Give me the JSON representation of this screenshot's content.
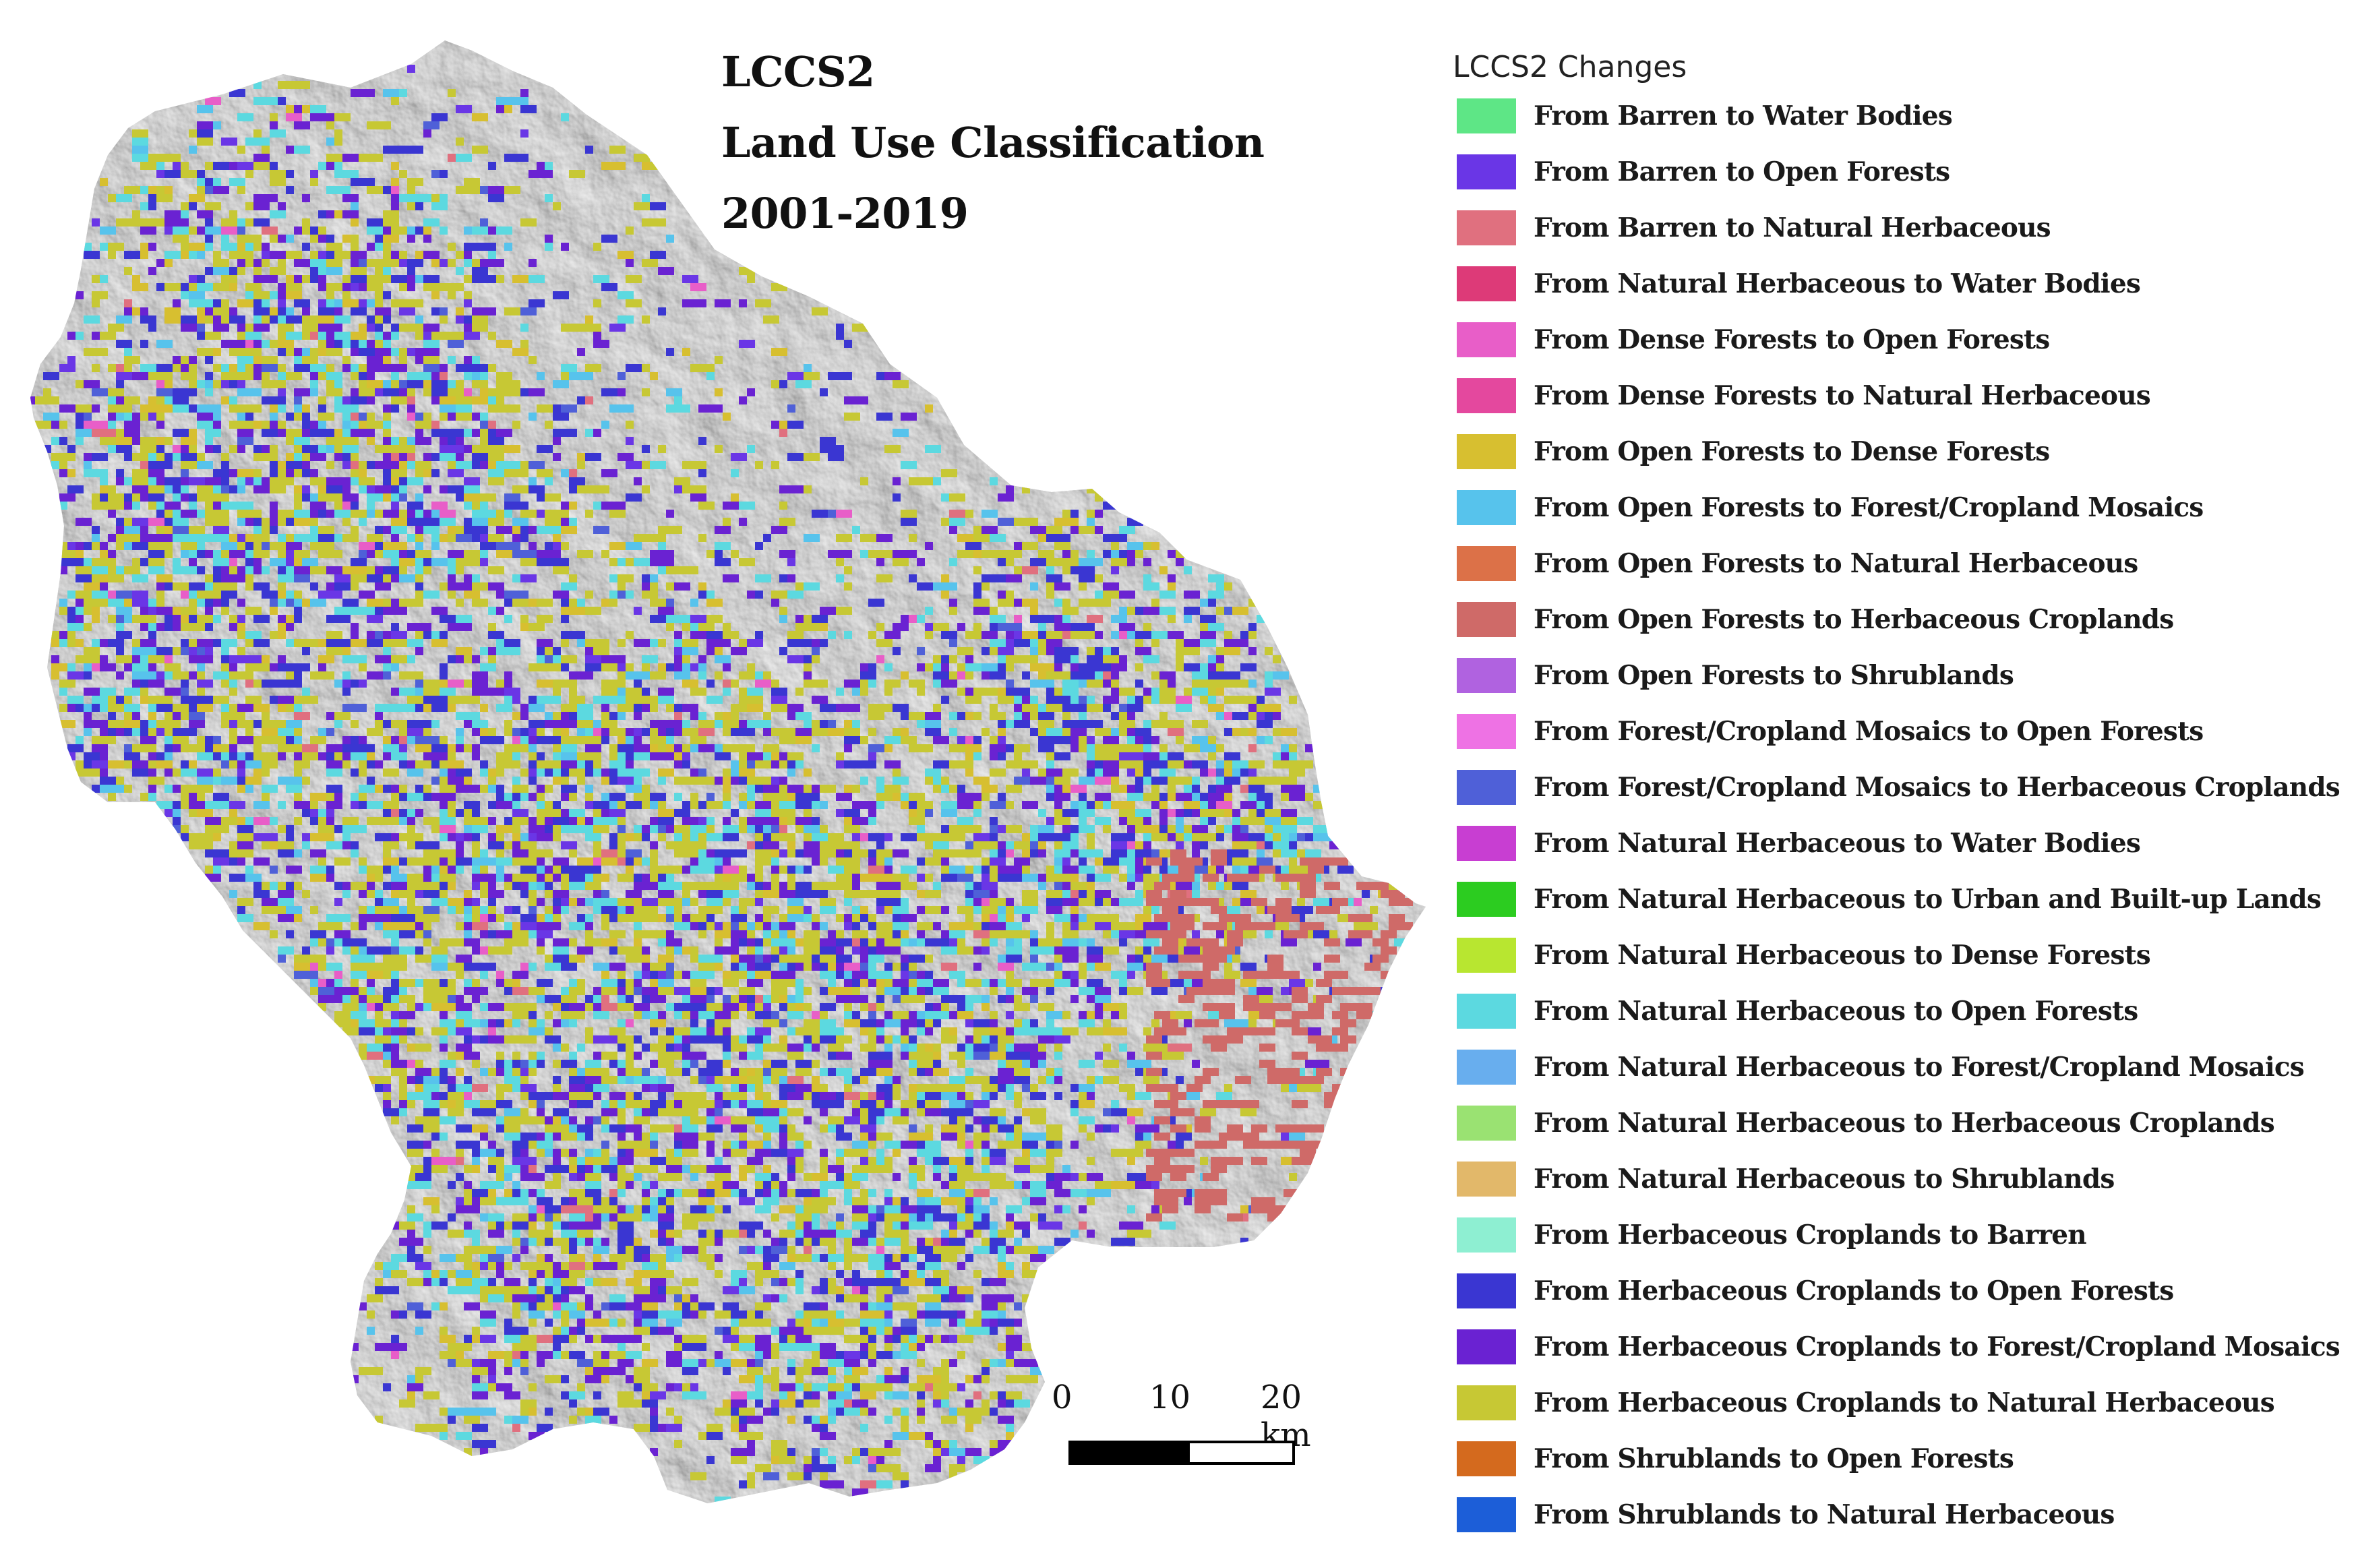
{
  "map": {
    "title_lines": [
      "LCCS2",
      "Land Use Classification",
      "2001-2019"
    ],
    "scale": {
      "labels": [
        "0",
        "10",
        "20 km"
      ]
    }
  },
  "legend": {
    "title": "LCCS2 Changes",
    "items": [
      {
        "label": "From Barren to Water Bodies",
        "color": "#5ee686"
      },
      {
        "label": "From Barren to Open Forests",
        "color": "#6a36e6"
      },
      {
        "label": "From Barren to Natural Herbaceous",
        "color": "#e0707f"
      },
      {
        "label": "From Natural Herbaceous to Water Bodies",
        "color": "#dd3a78"
      },
      {
        "label": "From Dense Forests to Open Forests",
        "color": "#e85ec8"
      },
      {
        "label": "From Dense Forests to Natural Herbaceous",
        "color": "#e4489e"
      },
      {
        "label": "From Open Forests to Dense Forests",
        "color": "#d7bf30"
      },
      {
        "label": "From Open Forests to Forest/Cropland Mosaics",
        "color": "#57c3ec"
      },
      {
        "label": "From Open Forests to Natural Herbaceous",
        "color": "#dc7148"
      },
      {
        "label": "From Open Forests to Herbaceous Croplands",
        "color": "#cf6a68"
      },
      {
        "label": "From Open Forests to Shrublands",
        "color": "#b062e0"
      },
      {
        "label": "From Forest/Cropland Mosaics to Open Forests",
        "color": "#ee72e4"
      },
      {
        "label": "From Forest/Cropland Mosaics to Herbaceous Croplands",
        "color": "#4f60d8"
      },
      {
        "label": "From Natural Herbaceous to Water Bodies",
        "color": "#c83ed2"
      },
      {
        "label": "From Natural Herbaceous to Urban and Built-up Lands",
        "color": "#2ccc20"
      },
      {
        "label": "From Natural Herbaceous to Dense Forests",
        "color": "#b8e630"
      },
      {
        "label": "From Natural Herbaceous to Open Forests",
        "color": "#5cd9e0"
      },
      {
        "label": "From Natural Herbaceous to Forest/Cropland Mosaics",
        "color": "#68aeee"
      },
      {
        "label": "From Natural Herbaceous to Herbaceous Croplands",
        "color": "#9ae272"
      },
      {
        "label": "From Natural Herbaceous to Shrublands",
        "color": "#e2b86a"
      },
      {
        "label": "From Herbaceous Croplands to Barren",
        "color": "#8eefd2"
      },
      {
        "label": "From Herbaceous Croplands to Open Forests",
        "color": "#3a36d2"
      },
      {
        "label": "From Herbaceous Croplands to Forest/Cropland Mosaics",
        "color": "#6a22d2"
      },
      {
        "label": "From Herbaceous Croplands to Natural Herbaceous",
        "color": "#c7c834"
      },
      {
        "label": "From Shrublands to Open Forests",
        "color": "#d46a1e"
      },
      {
        "label": "From Shrublands to Natural Herbaceous",
        "color": "#1c5ed8"
      }
    ]
  }
}
